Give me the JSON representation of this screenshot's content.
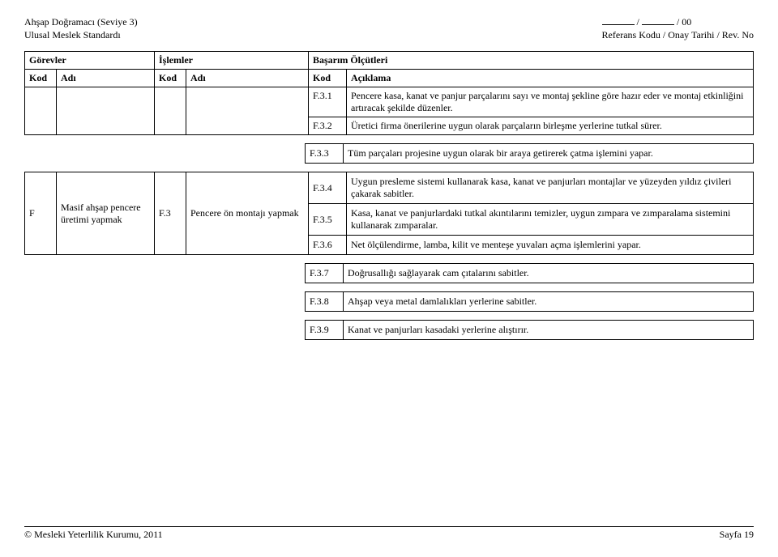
{
  "header": {
    "left_line1": "Ahşap Doğramacı (Seviye 3)",
    "left_line2": "Ulusal Meslek Standardı",
    "right_line1_suffix": " / 00",
    "right_line2": "Referans Kodu / Onay Tarihi / Rev. No"
  },
  "tableHead": {
    "gorevler": "Görevler",
    "islemler": "İşlemler",
    "basarim": "Başarım Ölçütleri",
    "kod": "Kod",
    "adi": "Adı",
    "aciklama": "Açıklama"
  },
  "inlineRows": [
    {
      "code": "F.3.1",
      "text": "Pencere kasa, kanat ve panjur parçalarını sayı ve montaj şekline göre hazır eder ve montaj etkinliğini artıracak şekilde düzenler."
    },
    {
      "code": "F.3.2",
      "text": "Üretici firma önerilerine uygun olarak parçaların birleşme yerlerine tutkal sürer."
    }
  ],
  "detached1": {
    "code": "F.3.3",
    "text": "Tüm parçaları projesine uygun olarak bir araya getirerek çatma işlemini yapar."
  },
  "mainBlock": {
    "gorev_code": "F",
    "gorev_adi": "Masif ahşap pencere üretimi yapmak",
    "islem_code": "F.3",
    "islem_adi": "Pencere ön montajı yapmak",
    "rows": [
      {
        "code": "F.3.4",
        "text": "Uygun presleme sistemi kullanarak kasa, kanat ve panjurları montajlar ve yüzeyden yıldız çivileri çakarak sabitler."
      },
      {
        "code": "F.3.5",
        "text": "Kasa, kanat ve panjurlardaki tutkal akıntılarını temizler, uygun zımpara ve zımparalama sistemini kullanarak zımparalar."
      },
      {
        "code": "F.3.6",
        "text": "Net ölçülendirme, lamba, kilit ve menteşe yuvaları açma işlemlerini yapar."
      }
    ]
  },
  "detachedRest": [
    {
      "code": "F.3.7",
      "text": "Doğrusallığı sağlayarak cam çıtalarını sabitler."
    },
    {
      "code": "F.3.8",
      "text": "Ahşap veya metal damlalıkları yerlerine sabitler."
    },
    {
      "code": "F.3.9",
      "text": "Kanat ve panjurları kasadaki yerlerine alıştırır."
    }
  ],
  "footer": {
    "left": "© Mesleki Yeterlilik Kurumu, 2011",
    "right": "Sayfa 19"
  }
}
